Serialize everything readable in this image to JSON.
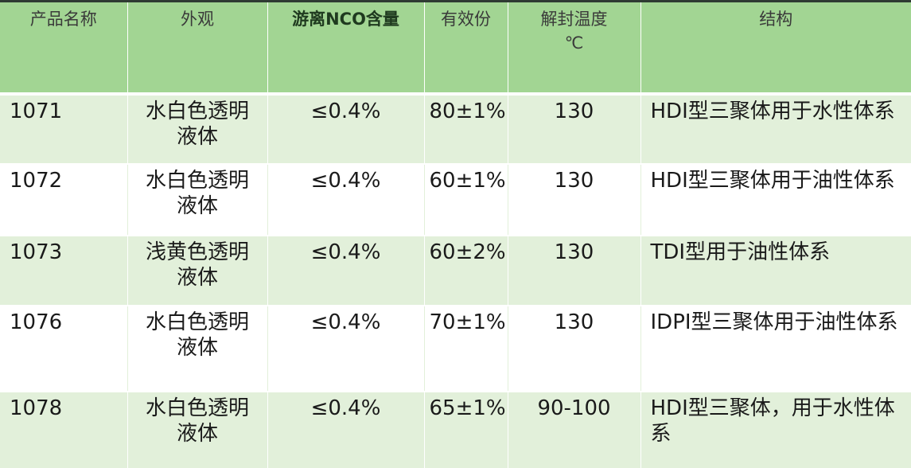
{
  "table": {
    "headers": [
      "产品名称",
      "外观",
      "游离NCO含量",
      "有效份",
      "解封温度\n℃",
      "结构"
    ],
    "rows": [
      {
        "name": "1071",
        "appearance": "水白色透明液体",
        "nco": "≤0.4%",
        "solids": "80±1%",
        "deblock_temp": "130",
        "structure": "HDI型三聚体用于水性体系"
      },
      {
        "name": "1072",
        "appearance": "水白色透明液体",
        "nco": "≤0.4%",
        "solids": "60±1%",
        "deblock_temp": "130",
        "structure": "HDI型三聚体用于油性体系"
      },
      {
        "name": "1073",
        "appearance": "浅黄色透明液体",
        "nco": "≤0.4%",
        "solids": "60±2%",
        "deblock_temp": "130",
        "structure": "TDI型用于油性体系"
      },
      {
        "name": "1076",
        "appearance": "水白色透明液体",
        "nco": "≤0.4%",
        "solids": "70±1%",
        "deblock_temp": "130",
        "structure": "IDPI型三聚体用于油性体系"
      },
      {
        "name": "1078",
        "appearance": "水白色透明液体",
        "nco": "≤0.4%",
        "solids": "65±1%",
        "deblock_temp": "90-100",
        "structure": "HDI型三聚体，用于水性体系"
      }
    ]
  },
  "colors": {
    "header_bg": "#a2d593",
    "row_band": "#e2f0da",
    "row_plain": "#ffffff"
  }
}
